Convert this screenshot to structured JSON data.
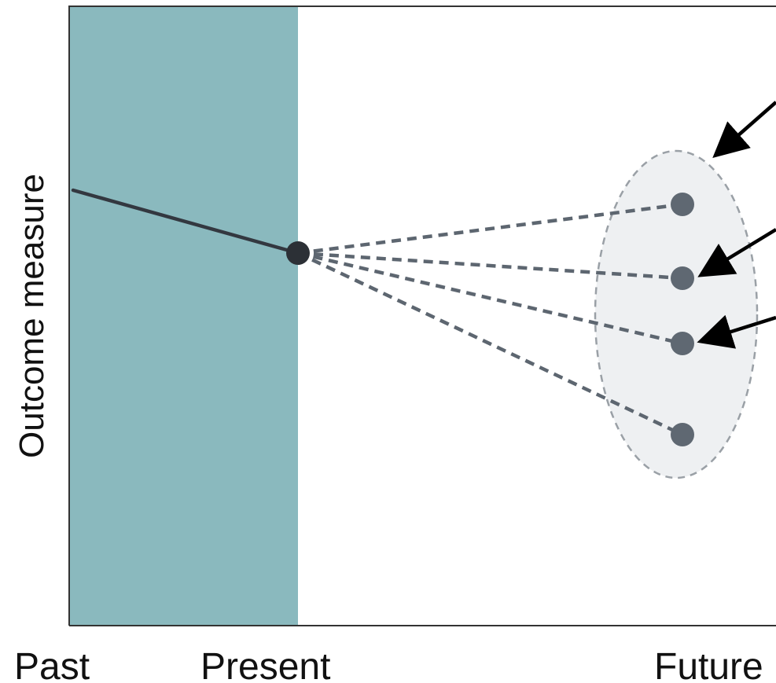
{
  "diagram": {
    "y_axis_label": "Outcome measure",
    "x_axis_labels": {
      "past": "Past",
      "present": "Present",
      "future": "Future"
    },
    "colors": {
      "past_region": "#8ab9be",
      "frame": "#333333",
      "history_line": "#333840",
      "present_point": "#2c3036",
      "projection": "#5d6670",
      "future_points": "#5f6872",
      "uncertainty_fill": "#eef0f2",
      "uncertainty_stroke": "#9aa0a6",
      "arrows": "#000000"
    },
    "future_outcomes_count": 4,
    "annotation_arrows_count": 3
  }
}
